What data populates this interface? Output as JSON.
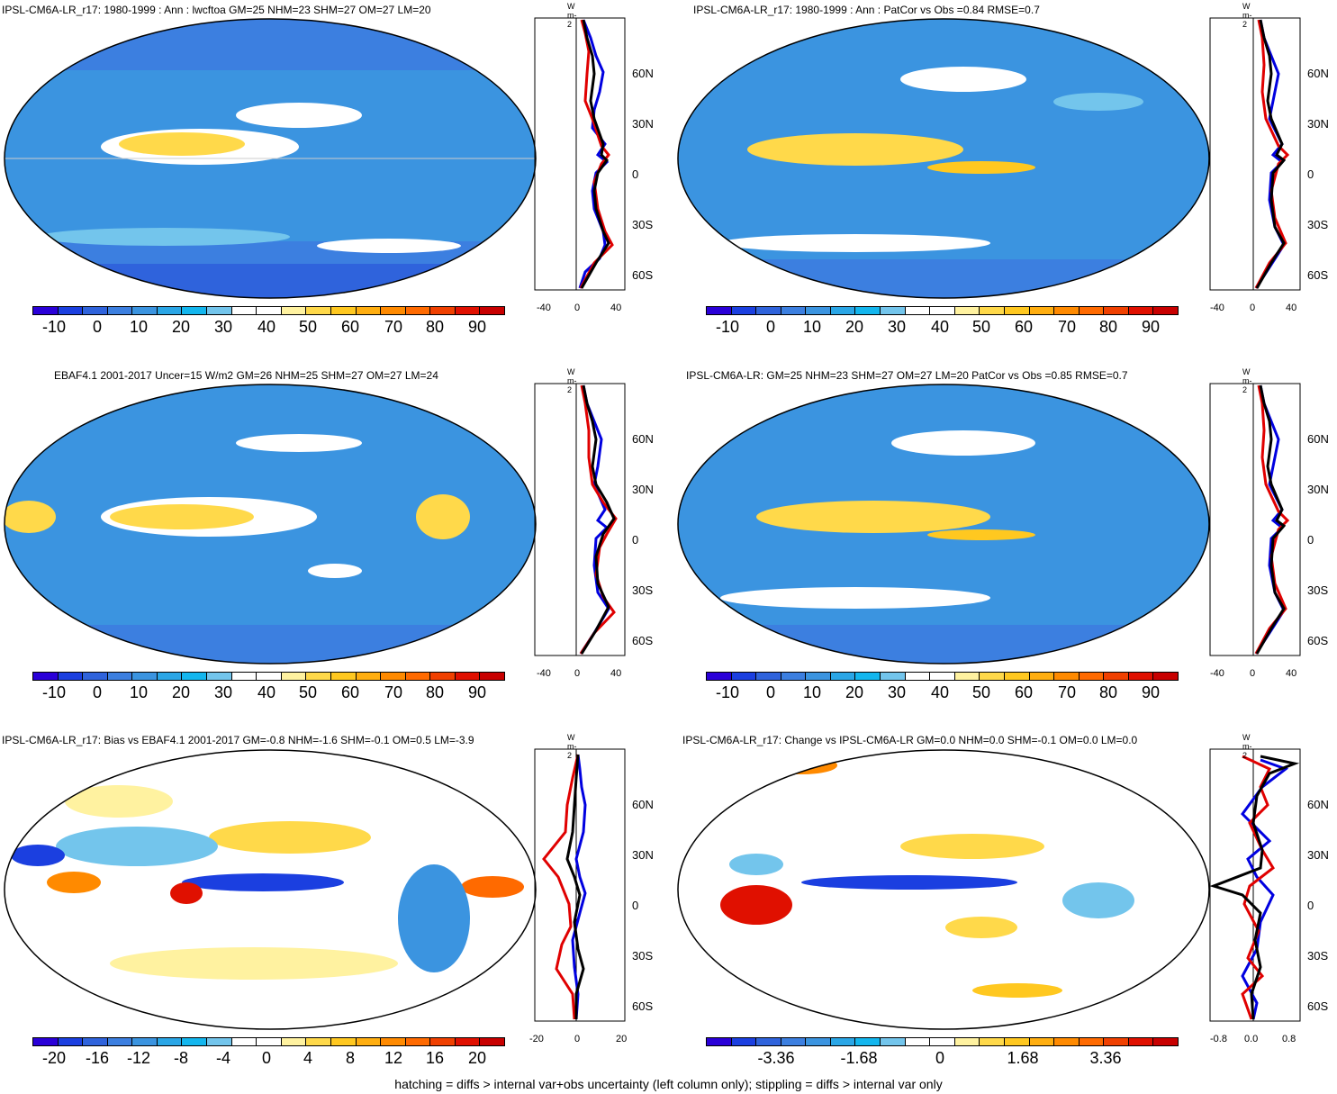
{
  "panels": [
    {
      "title": "IPSL-CM6A-LR_r17: 1980-1999 : Ann : lwcftoa GM=25 NHM=23 SHM=27 OM=27 LM=20",
      "cbar_labels": [
        "-10",
        "0",
        "10",
        "20",
        "30",
        "40",
        "50",
        "60",
        "70",
        "80",
        "90"
      ],
      "zm_unit": "W m-2",
      "zm_xticks": [
        "-40",
        "0",
        "40"
      ],
      "zm_yticks": [
        "60N",
        "30N",
        "0",
        "30S",
        "60S"
      ]
    },
    {
      "title": "IPSL-CM6A-LR_r17: 1980-1999 : Ann : PatCor vs Obs =0.84 RMSE=0.7",
      "cbar_labels": [
        "-10",
        "0",
        "10",
        "20",
        "30",
        "40",
        "50",
        "60",
        "70",
        "80",
        "90"
      ],
      "zm_unit": "W m-2",
      "zm_xticks": [
        "-40",
        "0",
        "40"
      ],
      "zm_yticks": [
        "60N",
        "30N",
        "0",
        "30S",
        "60S"
      ]
    },
    {
      "title": "EBAF4.1 2001-2017 Uncer=15 W/m2 GM=26 NHM=25 SHM=27 OM=27 LM=24",
      "cbar_labels": [
        "-10",
        "0",
        "10",
        "20",
        "30",
        "40",
        "50",
        "60",
        "70",
        "80",
        "90"
      ],
      "zm_unit": "W m-2",
      "zm_xticks": [
        "-40",
        "0",
        "40"
      ],
      "zm_yticks": [
        "60N",
        "30N",
        "0",
        "30S",
        "60S"
      ]
    },
    {
      "title": "IPSL-CM6A-LR: GM=25 NHM=23 SHM=27 OM=27 LM=20 PatCor vs Obs =0.85 RMSE=0.7",
      "cbar_labels": [
        "-10",
        "0",
        "10",
        "20",
        "30",
        "40",
        "50",
        "60",
        "70",
        "80",
        "90"
      ],
      "zm_unit": "W m-2",
      "zm_xticks": [
        "-40",
        "0",
        "40"
      ],
      "zm_yticks": [
        "60N",
        "30N",
        "0",
        "30S",
        "60S"
      ]
    },
    {
      "title": "IPSL-CM6A-LR_r17: Bias vs EBAF4.1 2001-2017 GM=-0.8 NHM=-1.6 SHM=-0.1 OM=0.5 LM=-3.9",
      "cbar_labels": [
        "-20",
        "-16",
        "-12",
        "-8",
        "-4",
        "0",
        "4",
        "8",
        "12",
        "16",
        "20"
      ],
      "zm_unit": "W m-2",
      "zm_xticks": [
        "-20",
        "0",
        "20"
      ],
      "zm_yticks": [
        "60N",
        "30N",
        "0",
        "30S",
        "60S"
      ]
    },
    {
      "title": "IPSL-CM6A-LR_r17: Change vs IPSL-CM6A-LR GM=0.0 NHM=0.0 SHM=-0.1 OM=0.0 LM=0.0",
      "cbar_labels": [
        "-3.36",
        "-1.68",
        "0",
        "1.68",
        "3.36"
      ],
      "zm_unit": "W m-2",
      "zm_xticks": [
        "-0.8",
        "0.0",
        "0.8"
      ],
      "zm_yticks": [
        "60N",
        "30N",
        "0",
        "30S",
        "60S"
      ]
    }
  ],
  "colorbar_colors": [
    "#2a00d8",
    "#1b3fe0",
    "#2f63dc",
    "#3c7fe0",
    "#3b94e0",
    "#2aa6e6",
    "#13b6ee",
    "#73c5ec",
    "#ffffff",
    "#ffffff",
    "#fff2a0",
    "#ffd94a",
    "#ffc820",
    "#ffae10",
    "#ff8a00",
    "#ff6a00",
    "#f04000",
    "#e01000",
    "#c80000"
  ],
  "footnote": "hatching = diffs > internal var+obs uncertainty (left column only); stippling = diffs > internal var only"
}
